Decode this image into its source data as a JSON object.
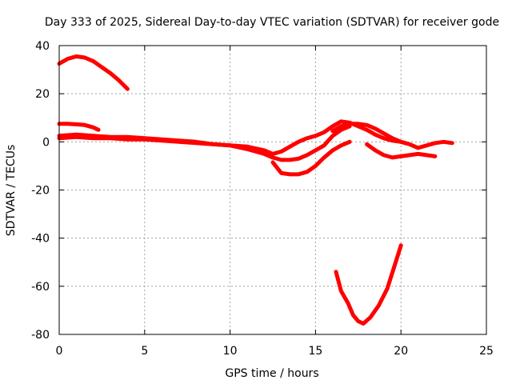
{
  "chart_data": {
    "type": "line",
    "title": "Day 333 of 2025, Sidereal Day-to-day VTEC variation (SDTVAR) for receiver gode",
    "xlabel": "GPS time / hours",
    "ylabel": "SDTVAR / TECUs",
    "xlim": [
      0,
      25
    ],
    "ylim": [
      -80,
      40
    ],
    "xticks": [
      0,
      5,
      10,
      15,
      20,
      25
    ],
    "yticks": [
      -80,
      -60,
      -40,
      -20,
      0,
      20,
      40
    ],
    "grid": true,
    "color": "#ff0000",
    "series": [
      {
        "name": "trace-1",
        "x": [
          0,
          0.5,
          1.0,
          1.5,
          2.0,
          2.5,
          3.0,
          3.5,
          4.0
        ],
        "y": [
          32.5,
          34.5,
          35.5,
          35.0,
          33.5,
          31.0,
          28.5,
          25.5,
          22.0
        ]
      },
      {
        "name": "trace-2",
        "x": [
          0,
          0.5,
          1.0,
          1.5,
          2.0,
          2.3
        ],
        "y": [
          7.5,
          7.5,
          7.3,
          7.0,
          6.0,
          5.0
        ]
      },
      {
        "name": "trace-3",
        "x": [
          0,
          1,
          2,
          3,
          4,
          5,
          6,
          7,
          8,
          9,
          10,
          11,
          12,
          12.5,
          13.0,
          13.5,
          14.0,
          14.5,
          15.0,
          15.5,
          16.0,
          16.5,
          17.0,
          17.5,
          18.0,
          18.5,
          19.0,
          19.5,
          20.0,
          20.5,
          21.0,
          21.5,
          22.0,
          22.5,
          23.0
        ],
        "y": [
          2.5,
          3.0,
          2.5,
          2.0,
          2.0,
          1.5,
          1.0,
          0.5,
          0.0,
          -1.0,
          -1.5,
          -2.0,
          -3.5,
          -5.0,
          -4.0,
          -2.0,
          0.0,
          1.5,
          2.5,
          4.0,
          6.5,
          8.5,
          8.0,
          6.5,
          5.0,
          3.0,
          1.5,
          0.5,
          0.0,
          -1.0,
          -2.5,
          -1.5,
          -0.5,
          0.0,
          -0.5
        ]
      },
      {
        "name": "trace-4",
        "x": [
          0,
          1,
          2,
          3,
          4,
          5,
          6,
          7,
          8,
          9,
          10,
          11,
          12,
          12.5,
          13.0,
          13.5,
          14.0,
          14.5,
          15.0,
          15.5,
          16.0,
          16.5,
          17.0
        ],
        "y": [
          1.5,
          2.0,
          1.5,
          1.5,
          1.0,
          1.0,
          0.5,
          0.0,
          -0.5,
          -1.0,
          -1.5,
          -3.0,
          -5.0,
          -6.5,
          -7.5,
          -7.5,
          -7.0,
          -5.5,
          -3.5,
          -1.5,
          2.5,
          5.0,
          6.5
        ]
      },
      {
        "name": "trace-5",
        "x": [
          12.5,
          13.0,
          13.5,
          14.0,
          14.5,
          15.0,
          15.5,
          16.0,
          16.5,
          17.0
        ],
        "y": [
          -8.5,
          -13.0,
          -13.5,
          -13.5,
          -12.5,
          -10.0,
          -6.5,
          -3.5,
          -1.5,
          0.0
        ]
      },
      {
        "name": "trace-6",
        "x": [
          16.0,
          16.5,
          17.0,
          17.5,
          18.0,
          18.5,
          19.0,
          19.5,
          20.0
        ],
        "y": [
          4.5,
          6.5,
          7.5,
          7.5,
          7.0,
          5.5,
          3.5,
          1.5,
          0.0
        ]
      },
      {
        "name": "trace-7",
        "x": [
          18.0,
          18.5,
          19.0,
          19.5,
          20.0,
          20.5,
          21.0,
          21.5,
          22.0
        ],
        "y": [
          -1.0,
          -3.5,
          -5.5,
          -6.5,
          -6.0,
          -5.5,
          -5.0,
          -5.5,
          -6.0
        ]
      },
      {
        "name": "trace-8",
        "x": [
          16.2,
          16.5,
          16.9,
          17.2,
          17.5,
          17.8,
          18.2,
          18.7,
          19.2,
          19.6,
          20.0
        ],
        "y": [
          -54,
          -62,
          -67,
          -72,
          -74.5,
          -75.5,
          -73,
          -68,
          -61,
          -52,
          -43
        ]
      }
    ]
  }
}
